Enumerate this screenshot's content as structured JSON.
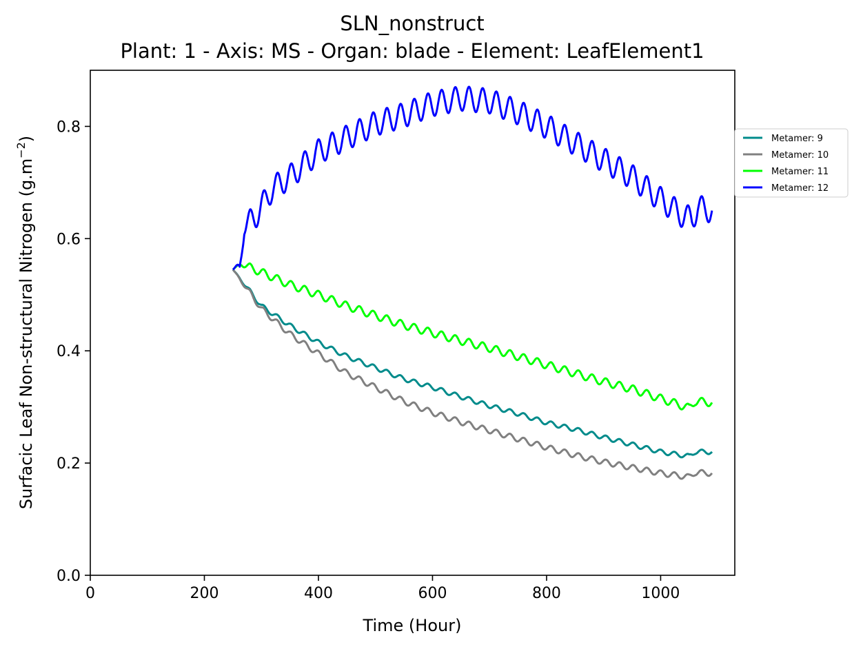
{
  "chart_data": {
    "type": "line",
    "title": "SLN_nonstruct",
    "subtitle": "Plant: 1 - Axis: MS - Organ: blade - Element: LeafElement1",
    "xlabel": "Time (Hour)",
    "ylabel": "Surfacic Leaf Non-structural Nitrogen (g.m",
    "ylabel_superscript": "−2",
    "ylabel_close": ")",
    "xlim": [
      0,
      1130
    ],
    "ylim": [
      0,
      0.9
    ],
    "x_ticks": [
      0,
      200,
      400,
      600,
      800,
      1000
    ],
    "y_ticks": [
      0.0,
      0.2,
      0.4,
      0.6,
      0.8
    ],
    "x_tick_labels": [
      "0",
      "200",
      "400",
      "600",
      "800",
      "1000"
    ],
    "y_tick_labels": [
      "0.0",
      "0.2",
      "0.4",
      "0.6",
      "0.8"
    ],
    "legend_position": "outside-right-top",
    "series": [
      {
        "name": "Metamer: 9",
        "color": "#008b8b",
        "x": [
          250,
          300,
          350,
          400,
          450,
          500,
          550,
          600,
          650,
          700,
          750,
          800,
          850,
          900,
          950,
          1000,
          1050,
          1060,
          1090
        ],
        "values": [
          0.545,
          0.48,
          0.445,
          0.415,
          0.39,
          0.37,
          0.35,
          0.335,
          0.318,
          0.302,
          0.288,
          0.272,
          0.26,
          0.246,
          0.233,
          0.22,
          0.212,
          0.22,
          0.22
        ],
        "wave_amplitude": 0.004
      },
      {
        "name": "Metamer: 10",
        "color": "#808080",
        "x": [
          250,
          300,
          350,
          400,
          450,
          500,
          550,
          600,
          650,
          700,
          750,
          800,
          850,
          900,
          950,
          1000,
          1050,
          1060,
          1090
        ],
        "values": [
          0.545,
          0.475,
          0.43,
          0.395,
          0.36,
          0.335,
          0.31,
          0.29,
          0.273,
          0.258,
          0.243,
          0.228,
          0.214,
          0.202,
          0.192,
          0.182,
          0.175,
          0.183,
          0.182
        ],
        "wave_amplitude": 0.005
      },
      {
        "name": "Metamer: 11",
        "color": "#00ff00",
        "x": [
          250,
          265,
          300,
          350,
          400,
          450,
          500,
          550,
          600,
          650,
          700,
          750,
          800,
          850,
          900,
          950,
          1000,
          1050,
          1060,
          1090
        ],
        "values": [
          0.545,
          0.555,
          0.54,
          0.518,
          0.5,
          0.48,
          0.463,
          0.446,
          0.432,
          0.418,
          0.405,
          0.39,
          0.375,
          0.36,
          0.345,
          0.332,
          0.315,
          0.298,
          0.31,
          0.308
        ],
        "wave_amplitude": 0.007
      },
      {
        "name": "Metamer: 12",
        "color": "#0000ff",
        "x": [
          250,
          262,
          270,
          290,
          320,
          350,
          400,
          450,
          500,
          550,
          600,
          650,
          700,
          750,
          800,
          850,
          900,
          950,
          1000,
          1040,
          1055,
          1065,
          1090
        ],
        "values": [
          0.545,
          0.55,
          0.62,
          0.64,
          0.69,
          0.71,
          0.755,
          0.78,
          0.805,
          0.82,
          0.84,
          0.85,
          0.845,
          0.825,
          0.8,
          0.77,
          0.74,
          0.71,
          0.67,
          0.64,
          0.635,
          0.655,
          0.65
        ],
        "wave_amplitude": 0.022
      }
    ]
  }
}
